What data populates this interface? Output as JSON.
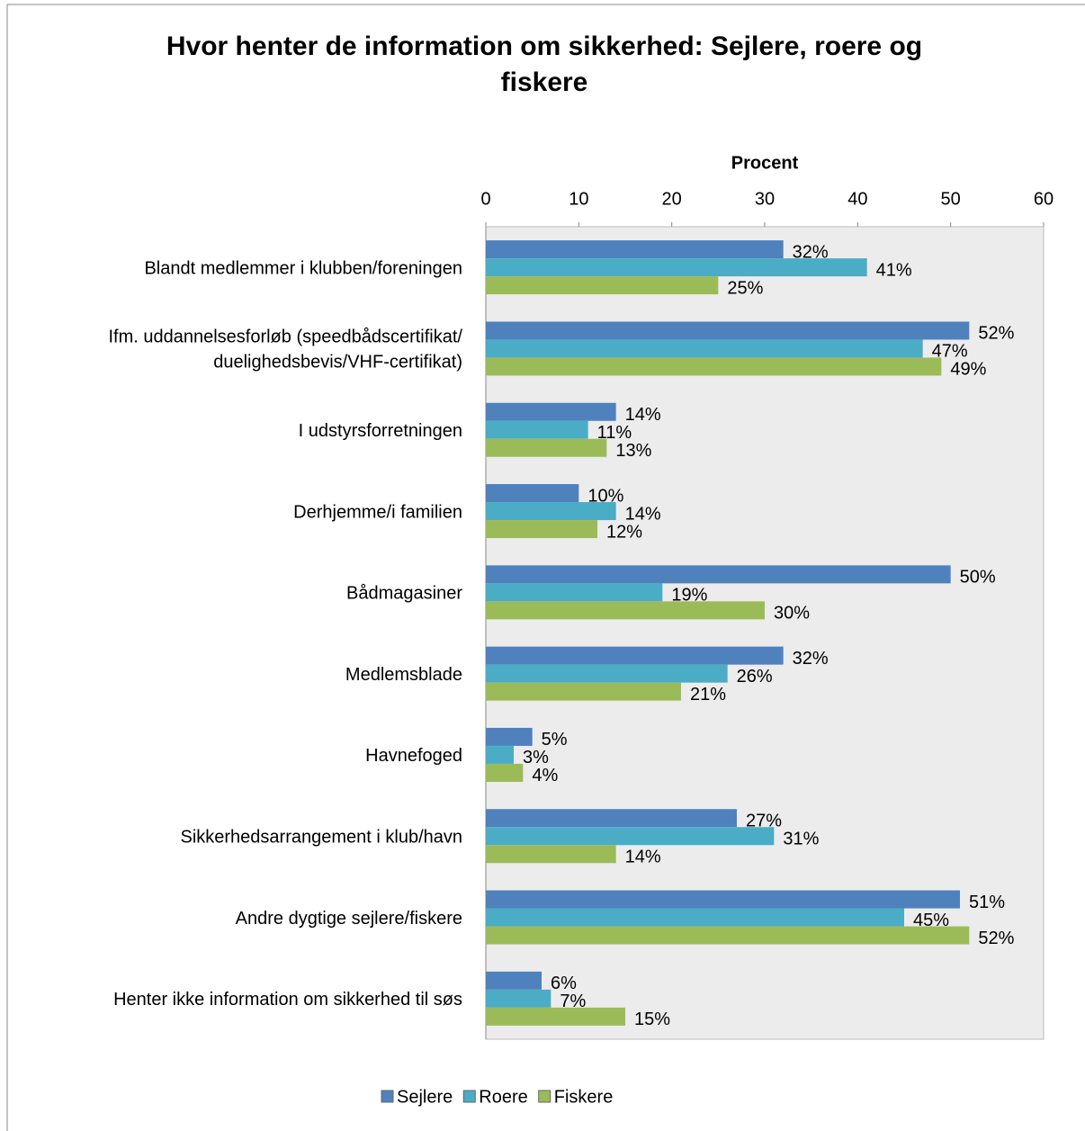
{
  "chart_data": {
    "type": "bar",
    "orientation": "horizontal",
    "title": "Hvor henter de information om sikkerhed: Sejlere, roere og\nfiskere",
    "x_label": "Procent",
    "categories": [
      "Blandt medlemmer i klubben/foreningen",
      "Ifm. uddannelsesforløb (speedbådscertifikat/\nduelighedsbevis/VHF-certifikat)",
      "I udstyrsforretningen",
      "Derhjemme/i familien",
      "Bådmagasiner",
      "Medlemsblade",
      "Havnefoged",
      "Sikkerhedsarrangement i klub/havn",
      "Andre dygtige sejlere/fiskere",
      "Henter ikke information om sikkerhed til søs"
    ],
    "series": [
      {
        "name": "Sejlere",
        "color": "#4f81bd",
        "values": [
          32,
          52,
          14,
          10,
          50,
          32,
          5,
          27,
          51,
          6
        ],
        "value_labels": [
          "32%",
          "52%",
          "14%",
          "10%",
          "50%",
          "32%",
          "5%",
          "27%",
          "51%",
          "6%"
        ]
      },
      {
        "name": "Roere",
        "color": "#4bacc6",
        "values": [
          41,
          47,
          11,
          14,
          19,
          26,
          3,
          31,
          45,
          7
        ],
        "value_labels": [
          "41%",
          "47%",
          "11%",
          "14%",
          "19%",
          "26%",
          "3%",
          "31%",
          "45%",
          "7%"
        ]
      },
      {
        "name": "Fiskere",
        "color": "#9bbb59",
        "values": [
          25,
          49,
          13,
          12,
          30,
          21,
          4,
          14,
          52,
          15
        ],
        "value_labels": [
          "25%",
          "49%",
          "13%",
          "12%",
          "30%",
          "21%",
          "4%",
          "14%",
          "52%",
          "15%"
        ]
      }
    ],
    "xlim": [
      0,
      60
    ],
    "xticks": [
      0,
      10,
      20,
      30,
      40,
      50,
      60
    ],
    "grid": false,
    "legend": "bottom"
  }
}
